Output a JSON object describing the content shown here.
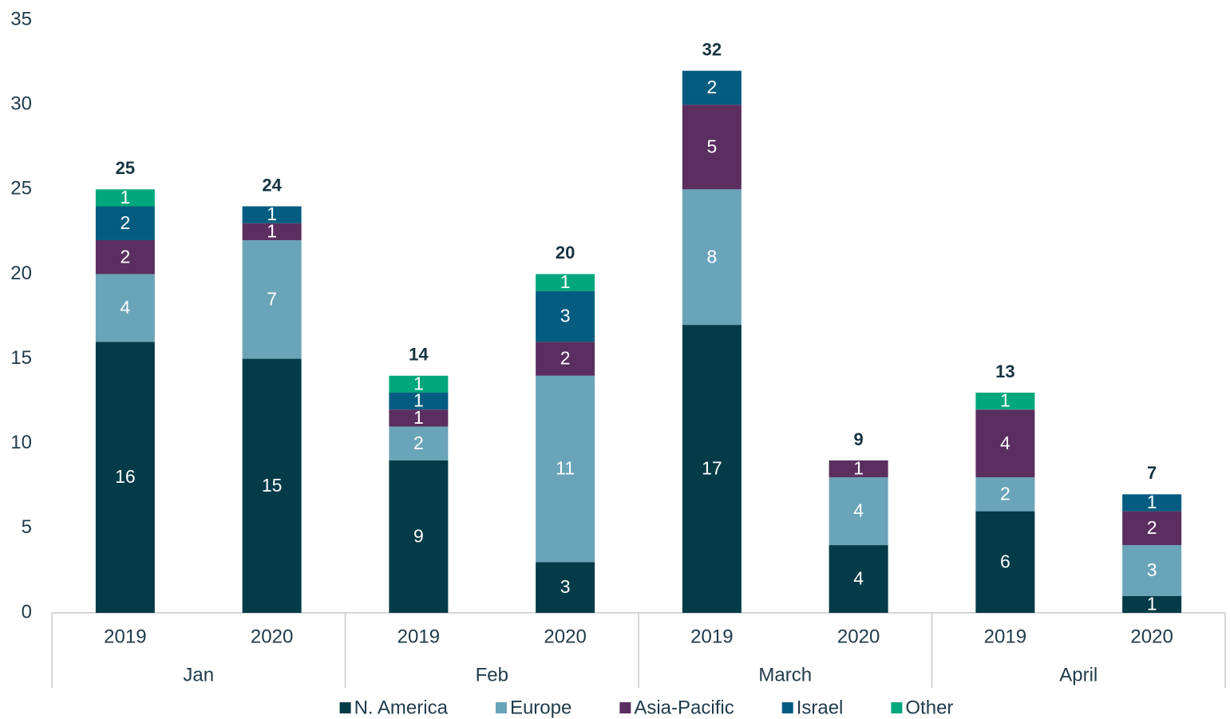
{
  "chart_data": {
    "type": "stacked_bar",
    "categories": [
      "2019",
      "2020",
      "2019",
      "2020",
      "2019",
      "2020",
      "2019",
      "2020"
    ],
    "groups": [
      "Jan",
      "Feb",
      "March",
      "April"
    ],
    "series": [
      {
        "name": "N. America",
        "color": "#033b48",
        "values": [
          16,
          15,
          9,
          3,
          17,
          4,
          6,
          1
        ]
      },
      {
        "name": "Europe",
        "color": "#6aa4b9",
        "values": [
          4,
          7,
          2,
          11,
          8,
          4,
          2,
          3
        ]
      },
      {
        "name": "Asia-Pacific",
        "color": "#5a2f5f",
        "values": [
          2,
          1,
          1,
          2,
          5,
          1,
          4,
          2
        ]
      },
      {
        "name": "Israel",
        "color": "#045c80",
        "values": [
          2,
          1,
          1,
          3,
          2,
          null,
          null,
          1
        ]
      },
      {
        "name": "Other",
        "color": "#02a77c",
        "values": [
          1,
          null,
          1,
          1,
          null,
          null,
          1,
          null
        ]
      }
    ],
    "totals": [
      25,
      24,
      14,
      20,
      32,
      9,
      13,
      7
    ],
    "ylim": [
      0,
      35
    ],
    "yticks": [
      0,
      5,
      10,
      15,
      20,
      25,
      30,
      35
    ],
    "grid": false,
    "legend": "bottom"
  }
}
